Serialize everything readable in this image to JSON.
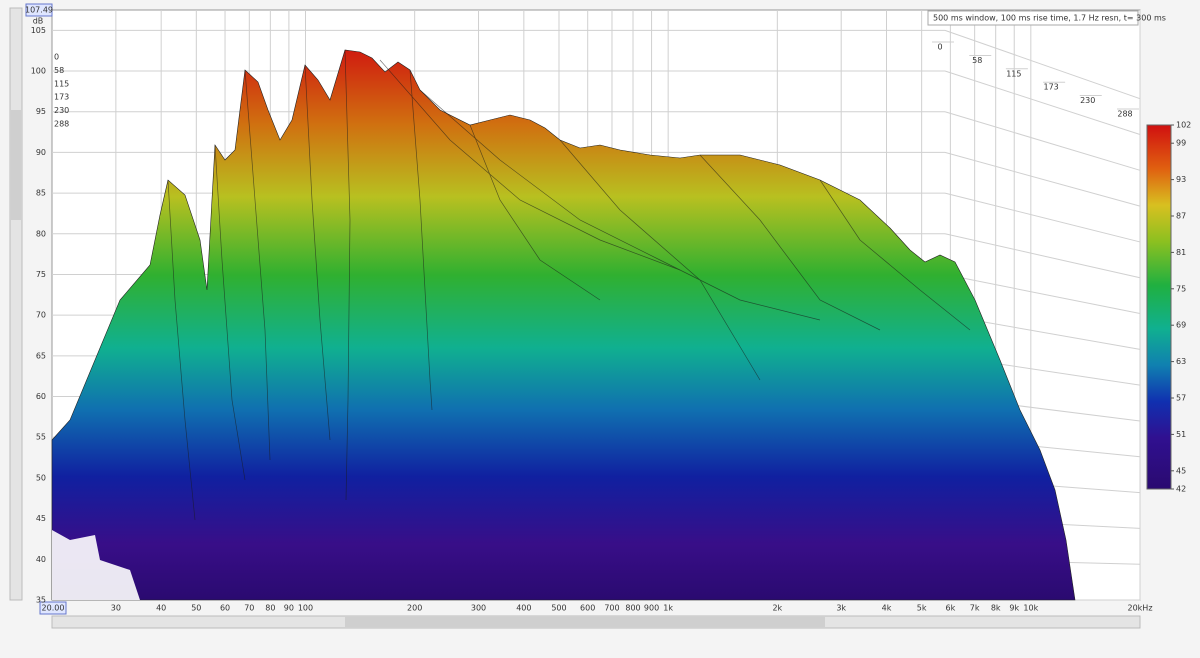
{
  "chart_data": {
    "type": "waterfall",
    "info": "500 ms window, 100 ms rise time, 1.7 Hz resn, t= 300 ms",
    "corner_top": "107.49",
    "corner_bottom": "20.00",
    "y_unit": "dB",
    "xscale": "log",
    "xlim": [
      20,
      20000
    ],
    "ylim": [
      35,
      107.5
    ],
    "tlim": [
      0,
      288
    ],
    "clim": [
      42,
      102
    ],
    "xticks": [
      30,
      40,
      50,
      60,
      70,
      80,
      90,
      100,
      200,
      300,
      400,
      500,
      600,
      700,
      800,
      900,
      {
        "value": 1000,
        "label": "1k"
      },
      {
        "value": 2000,
        "label": "2k"
      },
      {
        "value": 3000,
        "label": "3k"
      },
      {
        "value": 4000,
        "label": "4k"
      },
      {
        "value": 5000,
        "label": "5k"
      },
      {
        "value": 6000,
        "label": "6k"
      },
      {
        "value": 7000,
        "label": "7k"
      },
      {
        "value": 8000,
        "label": "8k"
      },
      {
        "value": 9000,
        "label": "9k"
      },
      {
        "value": 10000,
        "label": "10k"
      },
      {
        "value": 20000,
        "label": "20kHz"
      }
    ],
    "yticks": [
      35,
      40,
      45,
      50,
      55,
      60,
      65,
      70,
      75,
      80,
      85,
      90,
      95,
      100,
      105
    ],
    "tticks": [
      0,
      58,
      115,
      173,
      230,
      288
    ],
    "cticks": [
      42,
      45,
      51,
      57,
      63,
      69,
      75,
      81,
      87,
      93,
      99,
      102
    ],
    "grid": true
  }
}
